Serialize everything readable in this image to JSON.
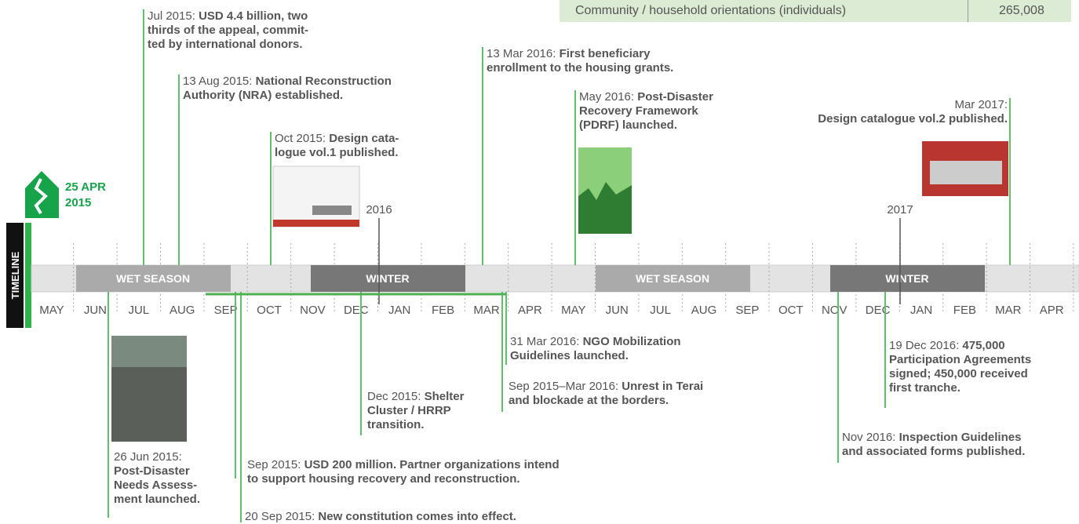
{
  "table_row": {
    "label": "Community / household orientations (individuals)",
    "value": "265,008"
  },
  "logo": {
    "lines": [
      "25 APR",
      "2015"
    ]
  },
  "timeline_label": "TIMELINE",
  "months": [
    "MAY",
    "JUN",
    "JUL",
    "AUG",
    "SEP",
    "OCT",
    "NOV",
    "DEC",
    "JAN",
    "FEB",
    "MAR",
    "APR",
    "MAY",
    "JUN",
    "JUL",
    "AUG",
    "SEP",
    "OCT",
    "NOV",
    "DEC",
    "JAN",
    "FEB",
    "MAR",
    "APR"
  ],
  "seasons": [
    "WET SEASON",
    "WINTER",
    "WET SEASON",
    "WINTER"
  ],
  "years": [
    "2016",
    "2017"
  ],
  "events": [
    {
      "date": "Jul 2015:",
      "lines": [
        "USD 4.4 billion, two",
        "thirds of the appeal, commit-",
        "ted by international donors."
      ]
    },
    {
      "date": "13 Aug 2015:",
      "lines": [
        "National Reconstruction",
        "Authority (NRA) established."
      ]
    },
    {
      "date": "Oct 2015:",
      "lines": [
        "Design cata-",
        "logue vol.1 published."
      ]
    },
    {
      "date": "13 Mar 2016:",
      "lines": [
        "First beneficiary",
        "enrollment to the housing grants."
      ]
    },
    {
      "date": "May 2016:",
      "lines": [
        "Post-Disaster",
        "Recovery Framework",
        "(PDRF) launched."
      ]
    },
    {
      "date": "Mar 2017:",
      "lines": [
        "Design catalogue vol.2 published."
      ]
    },
    {
      "date": "26 Jun 2015:",
      "lines": [
        "Post-Disaster",
        "Needs Assess-",
        "ment launched."
      ]
    },
    {
      "date": "Sep 2015:",
      "lines": [
        "USD 200 million. Partner organizations intend",
        "to support housing recovery and reconstruction."
      ]
    },
    {
      "date": "20 Sep 2015:",
      "lines": [
        "New constitution comes into effect."
      ]
    },
    {
      "date": "Dec 2015:",
      "lines": [
        "Shelter",
        "Cluster / HRRP",
        "transition."
      ]
    },
    {
      "date": "31 Mar 2016:",
      "lines": [
        "NGO Mobilization",
        "Guidelines launched."
      ]
    },
    {
      "date": "Sep 2015–Mar 2016:",
      "lines": [
        "Unrest in Terai",
        "and blockade at the borders."
      ]
    },
    {
      "date": "19 Dec 2016:",
      "lines": [
        "475,000",
        "Participation Agreements",
        "signed; 450,000 received",
        "first tranche."
      ]
    },
    {
      "date": "Nov 2016:",
      "lines": [
        "Inspection Guidelines",
        "and associated forms published."
      ]
    }
  ]
}
